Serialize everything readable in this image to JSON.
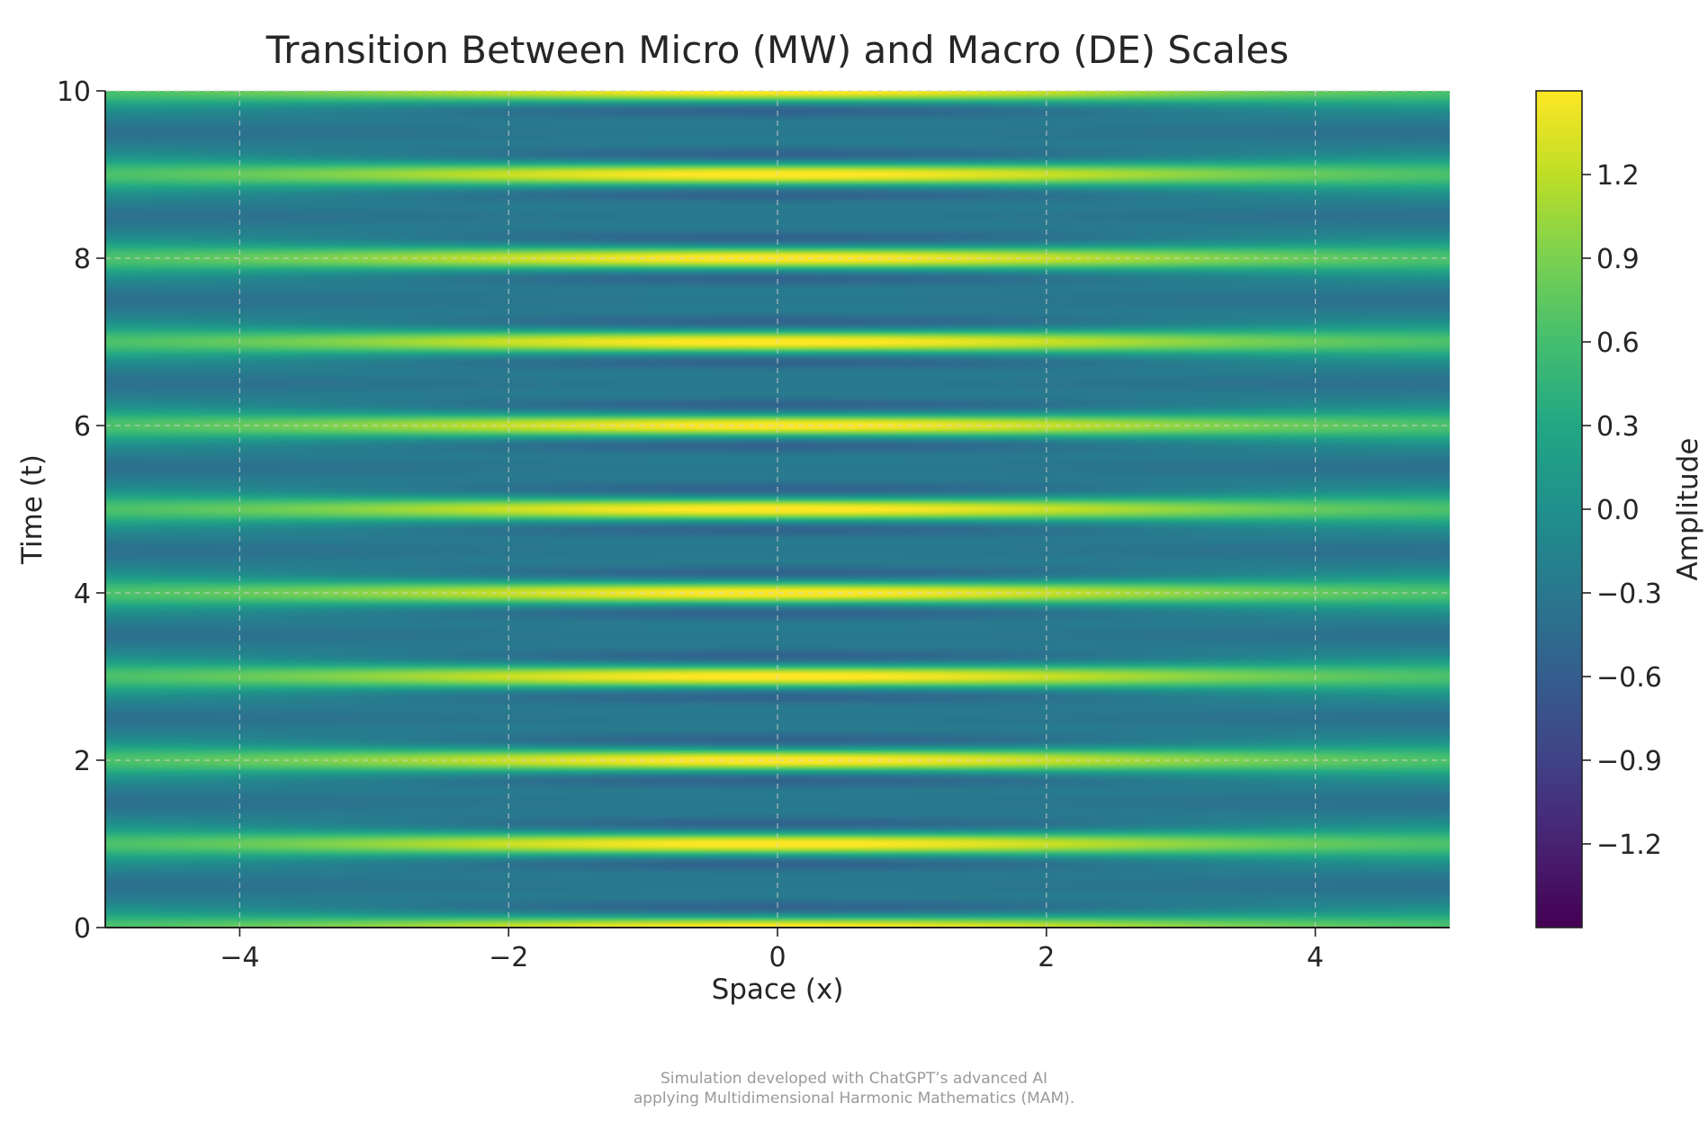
{
  "chart_data": {
    "type": "heatmap",
    "title": "Transition Between Micro (MW) and Macro (DE) Scales",
    "xlabel": "Space (x)",
    "ylabel": "Time (t)",
    "xlim": [
      -5,
      5
    ],
    "ylim": [
      0,
      10
    ],
    "x_ticks": [
      -4,
      -2,
      0,
      2,
      4
    ],
    "x_tick_labels": [
      "−4",
      "−2",
      "0",
      "2",
      "4"
    ],
    "y_ticks": [
      0,
      2,
      4,
      6,
      8,
      10
    ],
    "y_tick_labels": [
      "0",
      "2",
      "4",
      "6",
      "8",
      "10"
    ],
    "grid": true,
    "colormap": "viridis",
    "colorbar": {
      "label": "Amplitude",
      "range": [
        -1.5,
        1.5
      ],
      "ticks": [
        1.2,
        0.9,
        0.6,
        0.3,
        0.0,
        -0.3,
        -0.6,
        -0.9,
        -1.2
      ],
      "tick_labels": [
        "1.2",
        "0.9",
        "0.6",
        "0.3",
        "0.0",
        "−0.3",
        "−0.6",
        "−0.9",
        "−1.2"
      ]
    },
    "field": {
      "description_shown": "Amplitude varies mainly with time t as horizontal bands; strongest near x = 0",
      "macro_frequency_per_t": 1.0,
      "micro_frequency_per_t": 2.0,
      "spatial_envelope_width": 2.5
    }
  },
  "footer": {
    "line1": "Simulation developed with ChatGPT’s advanced AI",
    "line2": "applying Multidimensional Harmonic Mathematics (MAM)."
  }
}
